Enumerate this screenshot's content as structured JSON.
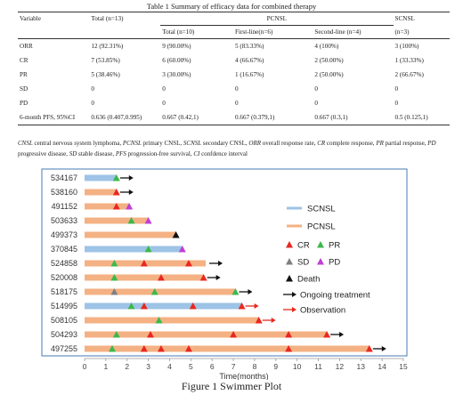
{
  "table": {
    "title": "Table 1 Summary of efficacy data for combined therapy",
    "headers": {
      "variable": "Variable",
      "total": "Total (n=13)",
      "pcnsl": "PCNSL",
      "scnsl": "SCNSL",
      "pcnsl_total": "Total (n=10)",
      "first_line": "First-line(n=6)",
      "second_line": "Second-line (n=4)",
      "scnsl_n": "(n=3)"
    },
    "rows": [
      {
        "variable": "ORR",
        "total": "12 (92.31%)",
        "pcnsl_total": "9 (90.00%)",
        "first_line": "5 (83.33%)",
        "second_line": "4 (100%)",
        "scnsl": "3 (100%)"
      },
      {
        "variable": "CR",
        "total": "7 (53.85%)",
        "pcnsl_total": "6 (60.00%)",
        "first_line": "4 (66.67%)",
        "second_line": "2 (50.00%)",
        "scnsl": "1 (33.33%)"
      },
      {
        "variable": "PR",
        "total": "5 (38.46%)",
        "pcnsl_total": "3 (30.00%)",
        "first_line": "1 (16.67%)",
        "second_line": "2 (50.00%)",
        "scnsl": "2 (66.67%)"
      },
      {
        "variable": "SD",
        "total": "0",
        "pcnsl_total": "0",
        "first_line": "0",
        "second_line": "0",
        "scnsl": "0"
      },
      {
        "variable": "PD",
        "total": "0",
        "pcnsl_total": "0",
        "first_line": "0",
        "second_line": "0",
        "scnsl": "0"
      },
      {
        "variable": "6-month PFS, 95%CI",
        "total": "0.636 (0.407,0.995)",
        "pcnsl_total": "0.667 (0.42,1)",
        "first_line": "0.667 (0.379,1)",
        "second_line": "0.667 (0.3,1)",
        "scnsl": "0.5 (0.125,1)"
      }
    ]
  },
  "abbreviations": [
    {
      "abbr": "CNSL",
      "text": " central nervous system lymphoma, "
    },
    {
      "abbr": "PCNSL",
      "text": " primary CNSL, "
    },
    {
      "abbr": "SCNSL",
      "text": " secondary CNSL, "
    },
    {
      "abbr": "ORR",
      "text": " overall response rate, "
    },
    {
      "abbr": "CR",
      "text": " complete response, "
    },
    {
      "abbr": "PR",
      "text": " partial response, "
    },
    {
      "abbr": "PD",
      "text": " progressive disease, "
    },
    {
      "abbr": "SD",
      "text": " stable disease, "
    },
    {
      "abbr": "PFS",
      "text": " progression-free survival, "
    },
    {
      "abbr": "CI",
      "text": " confdence interval"
    }
  ],
  "figure_caption": "Figure 1 Swimmer Plot",
  "chart_data": {
    "type": "swimmer",
    "xlabel": "Time(months)",
    "xlim": [
      0,
      15
    ],
    "xticks": [
      0,
      1,
      2,
      3,
      4,
      5,
      6,
      7,
      8,
      9,
      10,
      11,
      12,
      13,
      14,
      15
    ],
    "colors": {
      "SCNSL": "#9dc3e6",
      "PCNSL": "#f4b183",
      "CR": "#e8281e",
      "PR": "#3cb84a",
      "SD": "#7f7f7f",
      "PD": "#c03fd4",
      "Death": "#111111",
      "Ongoing treatment": "#111111",
      "Observation": "#e8281e"
    },
    "legend": {
      "position": "top-right",
      "groups": [
        "SCNSL",
        "PCNSL"
      ],
      "markers": [
        "CR",
        "PR",
        "SD",
        "PD",
        "Death"
      ],
      "arrows": [
        "Ongoing treatment",
        "Observation"
      ]
    },
    "patients": [
      {
        "id": "534167",
        "group": "SCNSL",
        "duration": 1.5,
        "events": [
          {
            "t": 1.5,
            "type": "PR"
          }
        ],
        "arrow": "Ongoing treatment"
      },
      {
        "id": "538160",
        "group": "PCNSL",
        "duration": 1.5,
        "events": [
          {
            "t": 1.5,
            "type": "CR"
          }
        ],
        "arrow": "Ongoing treatment"
      },
      {
        "id": "491152",
        "group": "PCNSL",
        "duration": 2.1,
        "events": [
          {
            "t": 1.5,
            "type": "CR"
          },
          {
            "t": 2.1,
            "type": "PD"
          }
        ],
        "arrow": null
      },
      {
        "id": "503633",
        "group": "PCNSL",
        "duration": 3.0,
        "events": [
          {
            "t": 2.2,
            "type": "PR"
          },
          {
            "t": 3.0,
            "type": "PD"
          }
        ],
        "arrow": null
      },
      {
        "id": "499373",
        "group": "PCNSL",
        "duration": 4.3,
        "events": [
          {
            "t": 4.3,
            "type": "Death"
          }
        ],
        "arrow": null
      },
      {
        "id": "370845",
        "group": "SCNSL",
        "duration": 4.6,
        "events": [
          {
            "t": 3.0,
            "type": "PR"
          },
          {
            "t": 4.6,
            "type": "PD"
          }
        ],
        "arrow": null
      },
      {
        "id": "524858",
        "group": "PCNSL",
        "duration": 5.7,
        "events": [
          {
            "t": 1.4,
            "type": "PR"
          },
          {
            "t": 2.8,
            "type": "CR"
          },
          {
            "t": 4.9,
            "type": "CR"
          }
        ],
        "arrow": "Ongoing treatment"
      },
      {
        "id": "520008",
        "group": "PCNSL",
        "duration": 5.6,
        "events": [
          {
            "t": 1.4,
            "type": "PR"
          },
          {
            "t": 3.6,
            "type": "CR"
          },
          {
            "t": 5.6,
            "type": "CR"
          }
        ],
        "arrow": "Ongoing treatment"
      },
      {
        "id": "518175",
        "group": "PCNSL",
        "duration": 7.1,
        "events": [
          {
            "t": 1.4,
            "type": "SD"
          },
          {
            "t": 3.3,
            "type": "PR"
          },
          {
            "t": 7.1,
            "type": "PR"
          }
        ],
        "arrow": "Ongoing treatment"
      },
      {
        "id": "514995",
        "group": "SCNSL",
        "duration": 7.4,
        "events": [
          {
            "t": 2.2,
            "type": "PR"
          },
          {
            "t": 2.8,
            "type": "CR"
          },
          {
            "t": 5.1,
            "type": "CR"
          },
          {
            "t": 7.4,
            "type": "CR"
          }
        ],
        "arrow": "Observation"
      },
      {
        "id": "508105",
        "group": "PCNSL",
        "duration": 8.2,
        "events": [
          {
            "t": 3.5,
            "type": "PR"
          },
          {
            "t": 8.2,
            "type": "CR"
          }
        ],
        "arrow": "Observation"
      },
      {
        "id": "504293",
        "group": "PCNSL",
        "duration": 11.4,
        "events": [
          {
            "t": 1.5,
            "type": "PR"
          },
          {
            "t": 3.1,
            "type": "CR"
          },
          {
            "t": 7.0,
            "type": "CR"
          },
          {
            "t": 9.6,
            "type": "CR"
          },
          {
            "t": 11.4,
            "type": "CR"
          }
        ],
        "arrow": "Ongoing treatment"
      },
      {
        "id": "497255",
        "group": "PCNSL",
        "duration": 13.4,
        "events": [
          {
            "t": 1.3,
            "type": "PR"
          },
          {
            "t": 2.8,
            "type": "CR"
          },
          {
            "t": 3.6,
            "type": "CR"
          },
          {
            "t": 4.9,
            "type": "CR"
          },
          {
            "t": 9.6,
            "type": "CR"
          },
          {
            "t": 13.4,
            "type": "CR"
          }
        ],
        "arrow": "Ongoing treatment"
      }
    ]
  }
}
